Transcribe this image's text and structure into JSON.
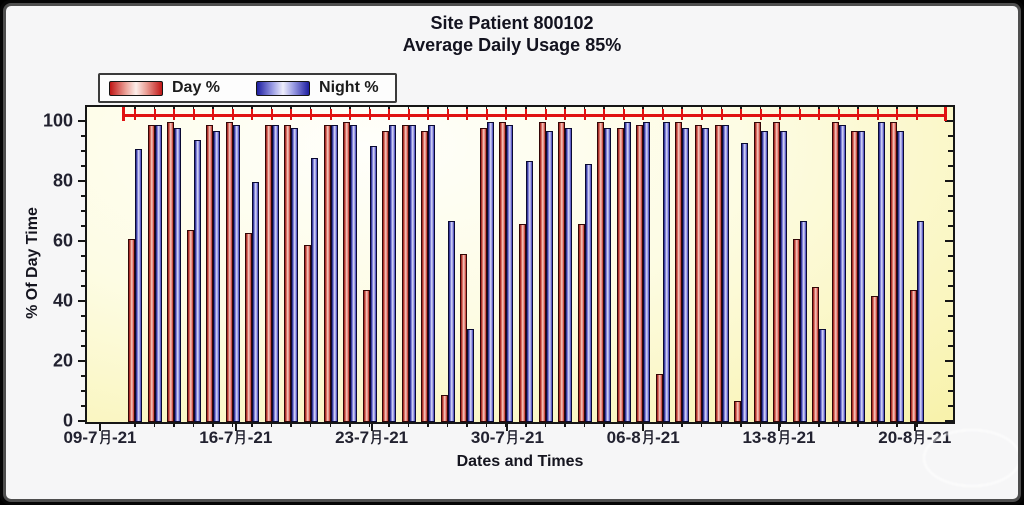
{
  "chart_data": {
    "type": "bar",
    "title": "Site Patient 800102",
    "subtitle": "Average Daily Usage 85%",
    "xlabel": "Dates and Times",
    "ylabel": "% Of Day Time",
    "ylim": [
      0,
      100
    ],
    "y_ticks": [
      0,
      20,
      40,
      60,
      80,
      100
    ],
    "y_minor_step": 5,
    "x_tick_labels": [
      "09-7月-21",
      "16-7月-21",
      "23-7月-21",
      "30-7月-21",
      "06-8月-21",
      "13-8月-21",
      "20-8月-21"
    ],
    "legend_position": "top-left",
    "grid": false,
    "marker_line": {
      "value": 102,
      "color": "#e01212",
      "style": "horizontal line with daily tick marks"
    },
    "colors": {
      "day": "#cc1a1a",
      "night": "#2a2ab0",
      "plot_bg": "#fdfbe0",
      "axis": "#161616"
    },
    "series": [
      {
        "name": "Day %",
        "values": [
          61,
          99,
          100,
          64,
          99,
          100,
          63,
          99,
          99,
          59,
          99,
          100,
          44,
          97,
          99,
          97,
          9,
          56,
          98,
          100,
          66,
          100,
          100,
          66,
          100,
          98,
          99,
          16,
          100,
          99,
          99,
          7,
          100,
          100,
          61,
          45,
          100,
          97,
          42,
          100,
          44
        ]
      },
      {
        "name": "Night %",
        "values": [
          91,
          99,
          98,
          94,
          97,
          99,
          80,
          99,
          98,
          88,
          99,
          99,
          92,
          99,
          99,
          99,
          67,
          31,
          100,
          99,
          87,
          97,
          98,
          86,
          98,
          100,
          100,
          100,
          98,
          98,
          99,
          93,
          97,
          97,
          67,
          31,
          99,
          97,
          100,
          97,
          67
        ]
      }
    ]
  }
}
